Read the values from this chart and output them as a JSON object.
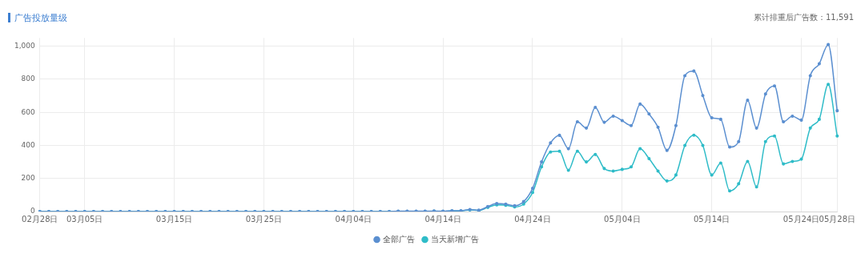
{
  "chart_data": {
    "type": "line",
    "title": "广告投放量级",
    "subtitle": "累计排重后广告数：11,591",
    "categories": [
      "02月28日",
      null,
      null,
      null,
      null,
      "03月05日",
      null,
      null,
      null,
      null,
      null,
      null,
      null,
      null,
      null,
      "03月15日",
      null,
      null,
      null,
      null,
      null,
      null,
      null,
      null,
      null,
      "03月25日",
      null,
      null,
      null,
      null,
      null,
      null,
      null,
      null,
      null,
      "04月04日",
      null,
      null,
      null,
      null,
      null,
      null,
      null,
      null,
      null,
      "04月14日",
      null,
      null,
      null,
      null,
      null,
      null,
      null,
      null,
      null,
      "04月24日",
      null,
      null,
      null,
      null,
      null,
      null,
      null,
      null,
      null,
      "05月04日",
      null,
      null,
      null,
      null,
      null,
      null,
      null,
      null,
      null,
      "05月14日",
      null,
      null,
      null,
      null,
      null,
      null,
      null,
      null,
      null,
      "05月24日",
      null,
      null,
      null,
      "05月28日"
    ],
    "series": [
      {
        "name": "全部广告",
        "color": "#5b8fd0",
        "values": [
          0,
          0,
          0,
          0,
          0,
          0,
          0,
          0,
          0,
          0,
          0,
          0,
          0,
          0,
          0,
          0,
          0,
          0,
          0,
          0,
          0,
          0,
          0,
          0,
          0,
          0,
          0,
          0,
          0,
          0,
          0,
          0,
          0,
          0,
          0,
          0,
          0,
          0,
          0,
          0,
          2,
          2,
          2,
          2,
          3,
          2,
          5,
          5,
          12,
          8,
          30,
          48,
          45,
          35,
          60,
          140,
          300,
          415,
          461,
          380,
          543,
          505,
          630,
          540,
          577,
          550,
          520,
          650,
          590,
          510,
          370,
          520,
          822,
          850,
          702,
          567,
          558,
          390,
          423,
          673,
          505,
          711,
          760,
          543,
          577,
          553,
          822,
          894,
          1010,
          610
        ]
      },
      {
        "name": "当天新增广告",
        "color": "#2fbcc8",
        "values": [
          0,
          0,
          0,
          0,
          0,
          0,
          0,
          0,
          0,
          0,
          0,
          0,
          0,
          0,
          0,
          0,
          0,
          0,
          0,
          0,
          0,
          0,
          0,
          0,
          0,
          0,
          0,
          0,
          0,
          0,
          0,
          0,
          0,
          0,
          0,
          0,
          0,
          0,
          0,
          0,
          1,
          1,
          1,
          1,
          2,
          1,
          4,
          4,
          10,
          6,
          25,
          40,
          38,
          28,
          45,
          115,
          270,
          360,
          365,
          250,
          365,
          300,
          345,
          260,
          245,
          255,
          270,
          380,
          320,
          245,
          185,
          221,
          400,
          462,
          400,
          221,
          293,
          125,
          168,
          303,
          149,
          423,
          457,
          288,
          303,
          317,
          505,
          558,
          769,
          457
        ]
      }
    ],
    "ylim": [
      0,
      1050
    ],
    "yticks": [
      0,
      200,
      400,
      600,
      800,
      {
        "value": 1000,
        "label": "1,000"
      }
    ],
    "grid": true,
    "legend": "bottom",
    "marker": "circle",
    "line_style": "solid"
  }
}
